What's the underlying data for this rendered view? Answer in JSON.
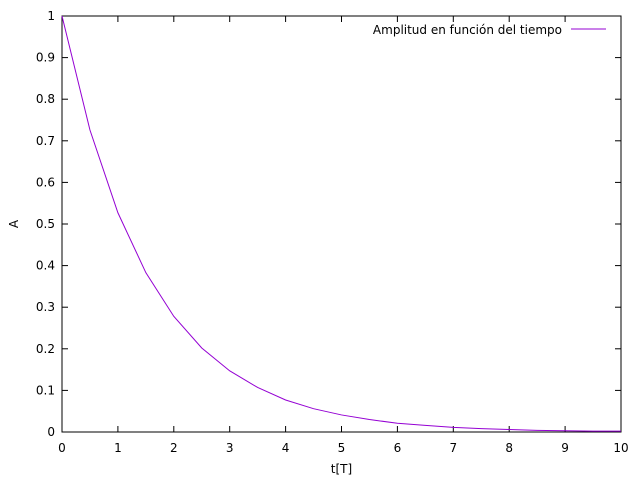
{
  "chart_data": {
    "type": "line",
    "title": "",
    "xlabel": "t[T]",
    "ylabel": "A",
    "xlim": [
      0,
      10
    ],
    "ylim": [
      0,
      1
    ],
    "x_ticks": [
      0,
      1,
      2,
      3,
      4,
      5,
      6,
      7,
      8,
      9,
      10
    ],
    "y_ticks": [
      0,
      0.1,
      0.2,
      0.3,
      0.4,
      0.5,
      0.6,
      0.7,
      0.8,
      0.9,
      1
    ],
    "x_tick_labels": [
      "0",
      "1",
      "2",
      "3",
      "4",
      "5",
      "6",
      "7",
      "8",
      "9",
      "10"
    ],
    "y_tick_labels": [
      "0",
      "0.1",
      "0.2",
      "0.3",
      "0.4",
      "0.5",
      "0.6",
      "0.7",
      "0.8",
      "0.9",
      "1"
    ],
    "grid": false,
    "legend_position": "top-right",
    "series": [
      {
        "name": "Amplitud en función del tiempo",
        "color": "#9400d3",
        "x": [
          0,
          0.5,
          1,
          1.5,
          2,
          2.5,
          3,
          3.5,
          4,
          4.5,
          5,
          5.5,
          6,
          6.5,
          7,
          7.5,
          8,
          8.5,
          9,
          9.5,
          10
        ],
        "y": [
          1.0,
          0.726,
          0.527,
          0.383,
          0.278,
          0.202,
          0.147,
          0.107,
          0.077,
          0.056,
          0.041,
          0.03,
          0.021,
          0.016,
          0.011,
          0.008,
          0.006,
          0.004,
          0.003,
          0.002,
          0.002
        ]
      }
    ]
  }
}
